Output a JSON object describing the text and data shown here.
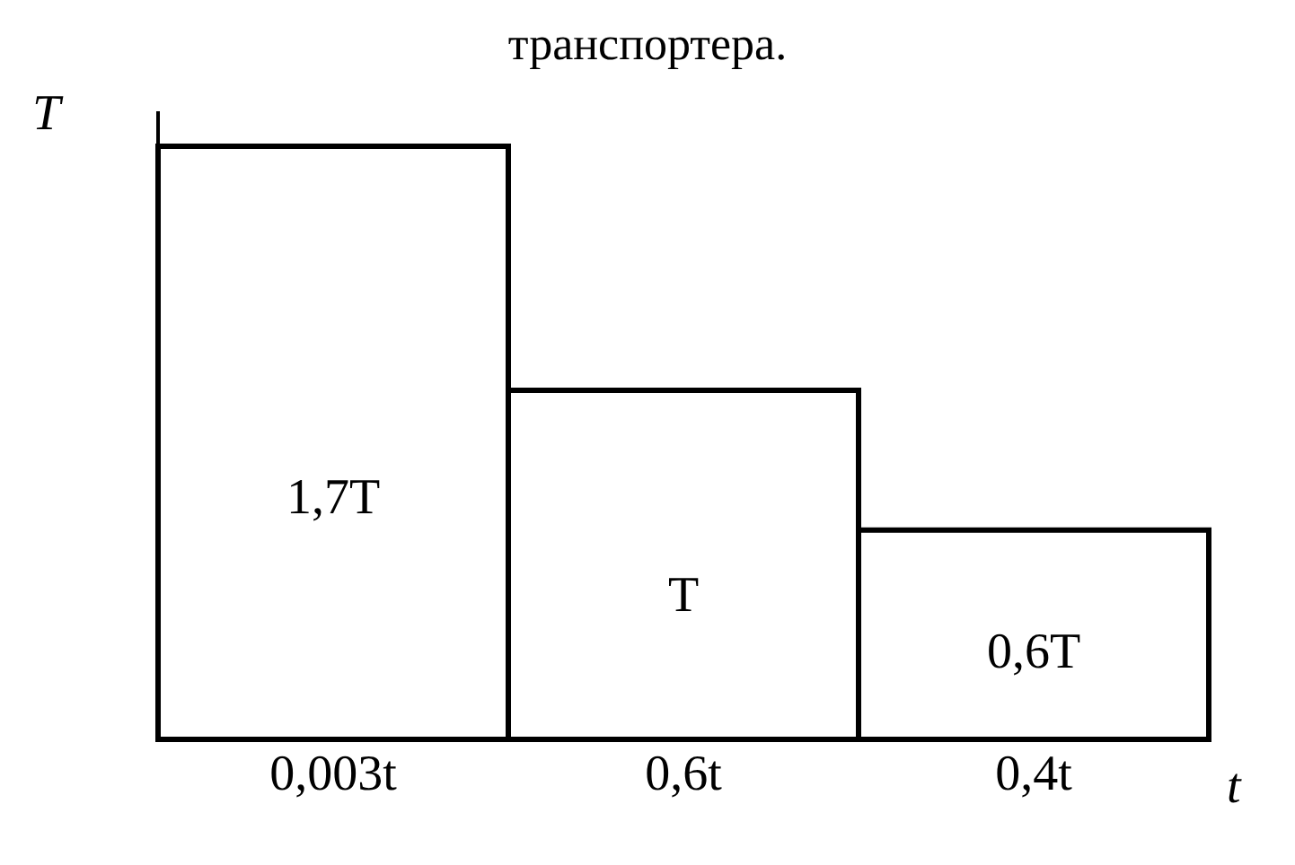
{
  "chart_data": {
    "type": "bar",
    "title": "транспортера.",
    "xlabel": "t",
    "ylabel": "T",
    "categories": [
      "0,003t",
      "0,6t",
      "0,4t"
    ],
    "values": [
      1.7,
      1,
      0.6
    ],
    "value_labels": [
      "1,7T",
      "T",
      "0,6T"
    ],
    "color": "#ffffff",
    "tick_labels": "x",
    "grid": false,
    "legend": false
  }
}
